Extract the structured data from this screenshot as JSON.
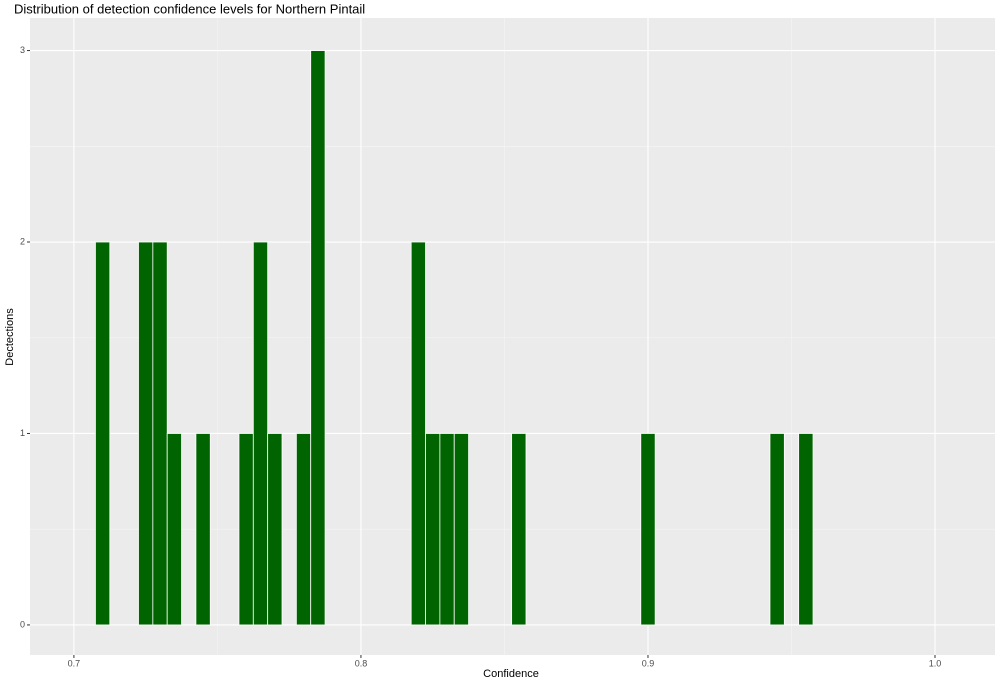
{
  "chart_data": {
    "type": "histogram",
    "title": "Distribution of detection confidence levels for Northern Pintail",
    "x_label": "Confidence",
    "y_label": "Dectections",
    "bins": [
      0.7075,
      0.7125,
      0.7175,
      0.7225,
      0.7275,
      0.7325,
      0.7375,
      0.7425,
      0.7475,
      0.7525,
      0.7575,
      0.7625,
      0.7675,
      0.7725,
      0.7775,
      0.7825,
      0.7875,
      0.7925,
      0.7975,
      0.8025,
      0.8075,
      0.8125,
      0.8175,
      0.8225,
      0.8275,
      0.8325,
      0.8375,
      0.8425,
      0.8475,
      0.8525,
      0.8575,
      0.8625,
      0.8675,
      0.8725,
      0.8775,
      0.8825,
      0.8875,
      0.8925,
      0.8975,
      0.9025,
      0.9075,
      0.9125,
      0.9175,
      0.9225,
      0.9275,
      0.9325,
      0.9375,
      0.9425,
      0.9475,
      0.9525,
      0.9575
    ],
    "values": [
      2,
      0,
      0,
      2,
      2,
      1,
      0,
      1,
      0,
      0,
      1,
      2,
      1,
      0,
      1,
      3,
      0,
      0,
      0,
      0,
      0,
      0,
      2,
      1,
      1,
      1,
      0,
      0,
      0,
      1,
      0,
      0,
      0,
      0,
      0,
      0,
      0,
      0,
      1,
      0,
      0,
      0,
      0,
      0,
      0,
      0,
      0,
      1,
      0,
      1
    ],
    "color": "#006400",
    "xlim": [
      0.6847,
      1.0209
    ],
    "xticks": [
      0.7,
      0.8,
      0.9,
      {
        "value": 1.0,
        "label": "1.0"
      }
    ],
    "ylim": [
      -0.157,
      3.17
    ],
    "yticks": [
      0,
      1,
      2,
      3
    ],
    "grid": true
  }
}
